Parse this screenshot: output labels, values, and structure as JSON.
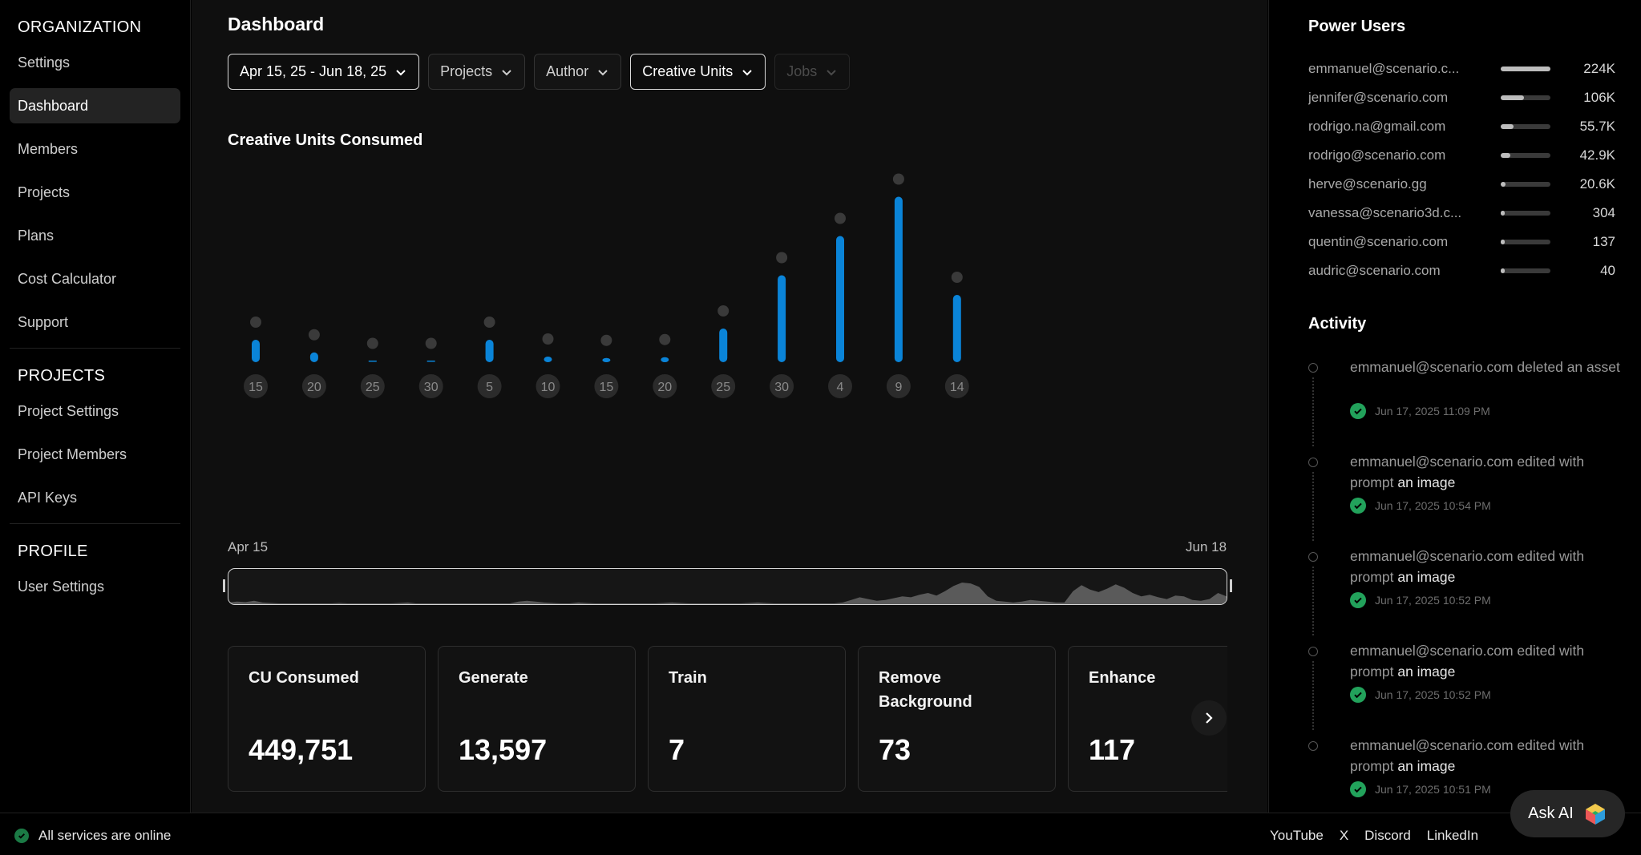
{
  "sidebar": {
    "organization_heading": "ORGANIZATION",
    "org_items": [
      "Settings",
      "Dashboard",
      "Members",
      "Projects",
      "Plans",
      "Cost Calculator",
      "Support"
    ],
    "active_item": "Dashboard",
    "projects_heading": "PROJECTS",
    "project_items": [
      "Project Settings",
      "Project Members",
      "API Keys"
    ],
    "profile_heading": "PROFILE",
    "profile_items": [
      "User Settings"
    ]
  },
  "main": {
    "title": "Dashboard",
    "filters": {
      "date_range": "Apr 15, 25 - Jun 18, 25",
      "projects": "Projects",
      "author": "Author",
      "metric": "Creative Units",
      "jobs": "Jobs"
    },
    "chart_title": "Creative Units Consumed",
    "range_start": "Apr 15",
    "range_end": "Jun 18",
    "cards": [
      {
        "label": "CU Consumed",
        "value": "449,751"
      },
      {
        "label": "Generate",
        "value": "13,597"
      },
      {
        "label": "Train",
        "value": "7"
      },
      {
        "label": "Remove Background",
        "value": "73"
      },
      {
        "label": "Enhance",
        "value": "117"
      }
    ]
  },
  "chart_data": {
    "type": "bar",
    "categories": [
      "15",
      "20",
      "25",
      "30",
      "5",
      "10",
      "15",
      "20",
      "25",
      "30",
      "4",
      "9",
      "14"
    ],
    "values": [
      8,
      3.5,
      0.2,
      0.2,
      8,
      2,
      1.5,
      1.8,
      12,
      31,
      45,
      59,
      24
    ],
    "title": "Creative Units Consumed",
    "ylim": [
      0,
      60
    ],
    "color": "#0a84d8",
    "overview_values": [
      1,
      2,
      1.5,
      3,
      1,
      0.5,
      0,
      0,
      0,
      0,
      0,
      0,
      0,
      0.5,
      0,
      0,
      0,
      0,
      0,
      0,
      0.5,
      1,
      0,
      0,
      0,
      0,
      0,
      0,
      0,
      0,
      0,
      0,
      0,
      0,
      2,
      3,
      2,
      1,
      0.5,
      0,
      0,
      1,
      0.5,
      0,
      0,
      0,
      0,
      0,
      0,
      0,
      0,
      0.5,
      1,
      0.5,
      0,
      0,
      0,
      0,
      0,
      0,
      0,
      0.5,
      1,
      0.5,
      0,
      0,
      0,
      0,
      0,
      0,
      0,
      0,
      1,
      4,
      7,
      5,
      3,
      4,
      6,
      8,
      7,
      10,
      12,
      9,
      14,
      20,
      24,
      23,
      19,
      8,
      3,
      2,
      1,
      2,
      4,
      3,
      2,
      1,
      1,
      14,
      21,
      16,
      13,
      17,
      22,
      18,
      12,
      8,
      10,
      7,
      5,
      9,
      8,
      4,
      3,
      5,
      12,
      8
    ]
  },
  "power_users": {
    "heading": "Power Users",
    "rows": [
      {
        "email": "emmanuel@scenario.c...",
        "value": "224K",
        "share": 1.0
      },
      {
        "email": "jennifer@scenario.com",
        "value": "106K",
        "share": 0.47
      },
      {
        "email": "rodrigo.na@gmail.com",
        "value": "55.7K",
        "share": 0.25
      },
      {
        "email": "rodrigo@scenario.com",
        "value": "42.9K",
        "share": 0.19
      },
      {
        "email": "herve@scenario.gg",
        "value": "20.6K",
        "share": 0.09
      },
      {
        "email": "vanessa@scenario3d.c...",
        "value": "304",
        "share": 0.0
      },
      {
        "email": "quentin@scenario.com",
        "value": "137",
        "share": 0.0
      },
      {
        "email": "audric@scenario.com",
        "value": "40",
        "share": 0.0
      }
    ]
  },
  "activity": {
    "heading": "Activity",
    "items": [
      {
        "actor": "emmanuel@scenario.com",
        "action": "deleted an asset",
        "object": "",
        "time": "Jun 17, 2025 11:09 PM"
      },
      {
        "actor": "emmanuel@scenario.com",
        "action": "edited with prompt",
        "object": "an image",
        "time": "Jun 17, 2025 10:54 PM"
      },
      {
        "actor": "emmanuel@scenario.com",
        "action": "edited with prompt",
        "object": "an image",
        "time": "Jun 17, 2025 10:52 PM"
      },
      {
        "actor": "emmanuel@scenario.com",
        "action": "edited with prompt",
        "object": "an image",
        "time": "Jun 17, 2025 10:52 PM"
      },
      {
        "actor": "emmanuel@scenario.com",
        "action": "edited with prompt",
        "object": "an image",
        "time": "Jun 17, 2025 10:51 PM"
      }
    ]
  },
  "footer": {
    "status": "All services are online",
    "links": [
      "YouTube",
      "X",
      "Discord",
      "LinkedIn"
    ]
  },
  "ask_ai": "Ask AI",
  "icons": {
    "chevron": "chevron-down-icon",
    "next": "chevron-right-icon",
    "check": "check-circle-icon",
    "status": "check-circle-icon",
    "ask_ai_logo": "ai-cube-icon"
  }
}
